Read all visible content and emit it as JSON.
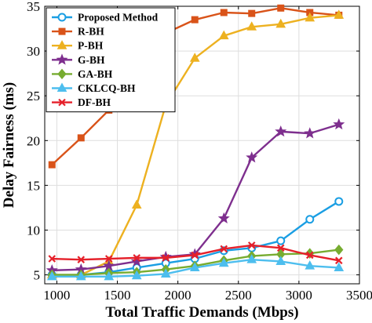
{
  "chart_data": {
    "type": "line",
    "xlabel": "Total Traffic Demands (Mbps)",
    "ylabel": "Delay Fairness (ms)",
    "xlim": [
      900,
      3500
    ],
    "ylim": [
      4,
      35
    ],
    "xticks": [
      1000,
      1500,
      2000,
      2500,
      3000,
      3500
    ],
    "yticks": [
      5,
      10,
      15,
      20,
      25,
      30,
      35
    ],
    "xtick_labels": [
      "1000",
      "1500",
      "2000",
      "2500",
      "3000",
      "3500"
    ],
    "ytick_labels": [
      "5",
      "10",
      "15",
      "20",
      "25",
      "30",
      "35"
    ],
    "grid": true,
    "legend_position": "top-left",
    "x": [
      960,
      1200,
      1430,
      1660,
      1900,
      2140,
      2380,
      2610,
      2850,
      3090,
      3330
    ],
    "series": [
      {
        "name": "Proposed Method",
        "color": "#1a9ee3",
        "marker": "circle",
        "values": [
          5.0,
          5.0,
          5.3,
          5.8,
          6.3,
          6.8,
          7.7,
          8.0,
          8.8,
          11.2,
          13.2
        ]
      },
      {
        "name": "R-BH",
        "color": "#d95319",
        "marker": "square",
        "values": [
          17.3,
          20.3,
          23.4,
          29.0,
          32.0,
          33.5,
          34.3,
          34.2,
          34.8,
          34.3,
          34.0
        ]
      },
      {
        "name": "P-BH",
        "color": "#edb120",
        "marker": "triangle-up",
        "values": [
          5.0,
          5.0,
          6.5,
          12.8,
          24.0,
          29.2,
          31.7,
          32.7,
          33.0,
          33.7,
          34.0
        ]
      },
      {
        "name": "G-BH",
        "color": "#7e2f8e",
        "marker": "star",
        "values": [
          5.5,
          5.6,
          6.0,
          6.5,
          7.0,
          7.3,
          11.3,
          18.1,
          21.0,
          20.8,
          21.8
        ]
      },
      {
        "name": "GA-BH",
        "color": "#77ac30",
        "marker": "diamond",
        "values": [
          5.0,
          5.0,
          5.2,
          5.3,
          5.6,
          6.0,
          6.6,
          7.1,
          7.3,
          7.4,
          7.8
        ]
      },
      {
        "name": "CKLCQ-BH",
        "color": "#4dbeee",
        "marker": "triangle-up",
        "values": [
          4.8,
          4.8,
          4.8,
          4.9,
          5.1,
          5.8,
          6.3,
          6.7,
          6.5,
          6.0,
          5.8
        ]
      },
      {
        "name": "DF-BH",
        "color": "#e5202a",
        "marker": "x",
        "values": [
          6.8,
          6.7,
          6.8,
          6.9,
          6.9,
          7.2,
          7.9,
          8.3,
          8.0,
          7.2,
          6.6
        ]
      }
    ]
  }
}
